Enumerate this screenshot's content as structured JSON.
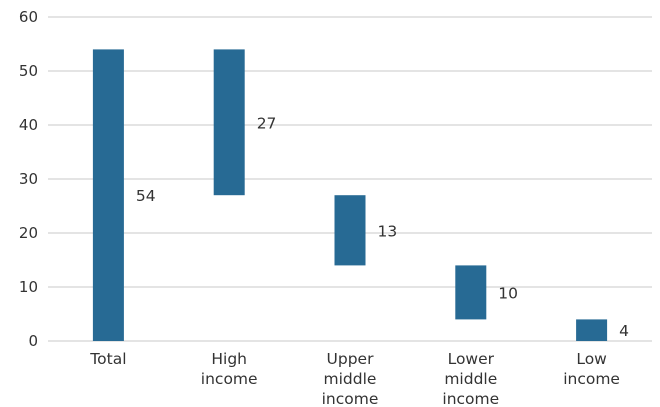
{
  "chart_data": {
    "type": "bar",
    "subtype": "waterfall",
    "categories": [
      "Total",
      "High income",
      "Upper middle income",
      "Lower middle income",
      "Low income"
    ],
    "category_lines": [
      [
        "Total"
      ],
      [
        "High",
        "income"
      ],
      [
        "Upper",
        "middle",
        "income"
      ],
      [
        "Lower",
        "middle",
        "income"
      ],
      [
        "Low",
        "income"
      ]
    ],
    "values": [
      54,
      27,
      13,
      10,
      4
    ],
    "bar_ranges": [
      [
        0,
        54
      ],
      [
        27,
        54
      ],
      [
        14,
        27
      ],
      [
        4,
        14
      ],
      [
        0,
        4
      ]
    ],
    "data_labels": [
      "54",
      "27",
      "13",
      "10",
      "4"
    ],
    "title": "",
    "xlabel": "",
    "ylabel": "",
    "ylim": [
      0,
      60
    ],
    "yticks": [
      0,
      10,
      20,
      30,
      40,
      50,
      60
    ],
    "grid": true,
    "legend": "none",
    "bar_color": "#276a94",
    "grid_color": "#c8c8c8",
    "text_color": "#333333"
  }
}
